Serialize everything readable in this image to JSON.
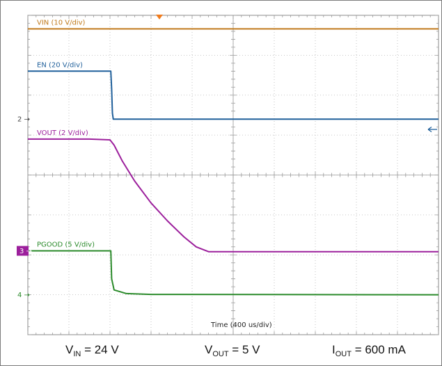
{
  "chart_data": {
    "type": "line",
    "title": "",
    "xlabel": "Time (400 us/div)",
    "ylabel": "",
    "x_divisions": 10,
    "y_divisions": 8,
    "x_unit": "us",
    "x_per_div": 400,
    "grid": true,
    "trigger_marker": "top",
    "series": [
      {
        "name": "VIN (10 V/div)",
        "color": "#c07a1c",
        "points": [
          [
            0,
            7.66
          ],
          [
            10,
            7.66
          ]
        ]
      },
      {
        "name": "EN (20 V/div)",
        "color": "#1f5f9a",
        "ground_marker": "2",
        "points": [
          [
            0,
            6.6
          ],
          [
            2.02,
            6.6
          ],
          [
            2.04,
            6.15
          ],
          [
            2.06,
            5.55
          ],
          [
            2.08,
            5.4
          ],
          [
            10,
            5.4
          ]
        ]
      },
      {
        "name": "VOUT (2 V/div)",
        "color": "#9c1f9c",
        "points": [
          [
            0,
            4.9
          ],
          [
            1.5,
            4.9
          ],
          [
            2.0,
            4.88
          ],
          [
            2.1,
            4.75
          ],
          [
            2.3,
            4.35
          ],
          [
            2.6,
            3.85
          ],
          [
            3.0,
            3.3
          ],
          [
            3.4,
            2.85
          ],
          [
            3.8,
            2.45
          ],
          [
            4.1,
            2.2
          ],
          [
            4.4,
            2.08
          ],
          [
            10,
            2.08
          ]
        ]
      },
      {
        "name": "PGOOD (5 V/div)",
        "color": "#2a8a2a",
        "ground_marker": "3",
        "points": [
          [
            0,
            2.1
          ],
          [
            2.02,
            2.1
          ],
          [
            2.04,
            1.4
          ],
          [
            2.1,
            1.12
          ],
          [
            2.4,
            1.03
          ],
          [
            3.0,
            1.01
          ],
          [
            10,
            1.0
          ]
        ]
      }
    ],
    "ground_markers": [
      {
        "label": "2",
        "level": 5.4,
        "color": "#444444"
      },
      {
        "label": "3",
        "level": 2.1,
        "color": "#9c1f9c"
      },
      {
        "label": "4",
        "level": 1.0,
        "color": "#2a8a2a"
      }
    ]
  },
  "caption": {
    "vin": {
      "main": "V",
      "sub": "IN",
      "rest": " = 24 V"
    },
    "vout": {
      "main": "V",
      "sub": "OUT",
      "rest": " = 5 V"
    },
    "iout": {
      "main": "I",
      "sub": "OUT",
      "rest": " = 600 mA"
    }
  }
}
